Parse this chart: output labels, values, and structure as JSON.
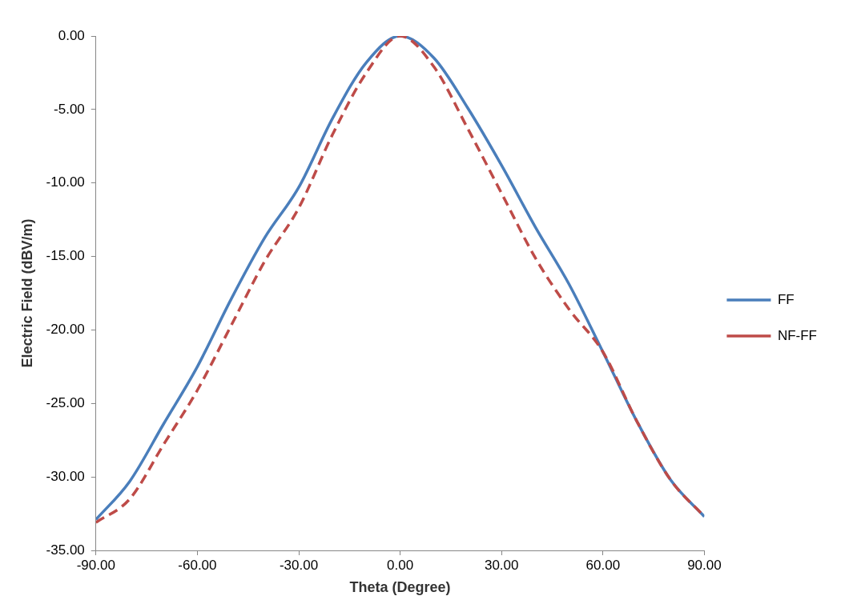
{
  "chart_data": {
    "type": "line",
    "xlabel": "Theta (Degree)",
    "ylabel": "Electric Field (dBV/m)",
    "x": [
      -90,
      -80,
      -70,
      -60,
      -50,
      -40,
      -30,
      -20,
      -10,
      0,
      10,
      20,
      30,
      40,
      50,
      60,
      70,
      80,
      90
    ],
    "series": [
      {
        "name": "FF",
        "color": "#4a7ebb",
        "line_style": "solid",
        "values": [
          -32.9,
          -30.3,
          -26.4,
          -22.5,
          -17.9,
          -13.7,
          -10.3,
          -5.6,
          -1.8,
          0,
          -1.5,
          -4.9,
          -8.8,
          -13.0,
          -16.9,
          -21.5,
          -26.2,
          -30.2,
          -32.7
        ]
      },
      {
        "name": "NF-FF",
        "color": "#be4b48",
        "line_style": "dashed",
        "values": [
          -33.1,
          -31.5,
          -27.8,
          -24.1,
          -19.7,
          -15.3,
          -11.7,
          -6.7,
          -2.5,
          0,
          -2.1,
          -6.3,
          -10.7,
          -15.1,
          -18.6,
          -21.5,
          -26.2,
          -30.2,
          -32.7
        ]
      }
    ],
    "xlim": [
      -90,
      90
    ],
    "xticks": [
      {
        "value": -90,
        "label": "-90.00"
      },
      {
        "value": -60,
        "label": "-60.00"
      },
      {
        "value": -30,
        "label": "-30.00"
      },
      {
        "value": 0,
        "label": "0.00"
      },
      {
        "value": 30,
        "label": "30.00"
      },
      {
        "value": 60,
        "label": "60.00"
      },
      {
        "value": 90,
        "label": "90.00"
      }
    ],
    "ylim": [
      -35,
      0
    ],
    "yticks": [
      {
        "value": -35,
        "label": "-35.00"
      },
      {
        "value": -30,
        "label": "-30.00"
      },
      {
        "value": -25,
        "label": "-25.00"
      },
      {
        "value": -20,
        "label": "-20.00"
      },
      {
        "value": -15,
        "label": "-15.00"
      },
      {
        "value": -10,
        "label": "-10.00"
      },
      {
        "value": -5,
        "label": "-5.00"
      },
      {
        "value": 0,
        "label": "0.00"
      }
    ],
    "grid": false,
    "legend": "right",
    "marker": "none"
  }
}
